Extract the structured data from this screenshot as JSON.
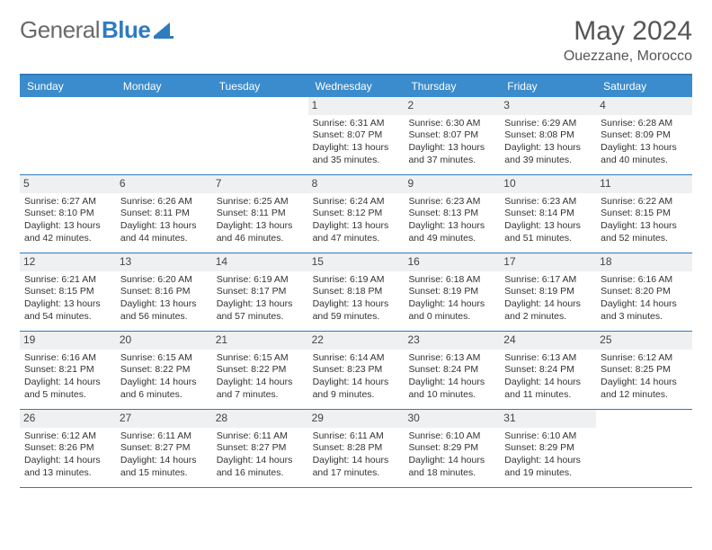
{
  "logo": {
    "text_general": "General",
    "text_blue": "Blue"
  },
  "title": {
    "month": "May 2024",
    "location": "Ouezzane, Morocco"
  },
  "day_names": [
    "Sunday",
    "Monday",
    "Tuesday",
    "Wednesday",
    "Thursday",
    "Friday",
    "Saturday"
  ],
  "colors": {
    "header_bg": "#3b8ccc",
    "border": "#2f7bbf",
    "daynum_bg": "#eef0f1",
    "logo_gray": "#6a6a6a",
    "logo_blue": "#2f7bbf"
  },
  "weeks": [
    [
      {
        "empty": true
      },
      {
        "empty": true
      },
      {
        "empty": true
      },
      {
        "n": "1",
        "sunrise": "Sunrise: 6:31 AM",
        "sunset": "Sunset: 8:07 PM",
        "daylight": "Daylight: 13 hours and 35 minutes."
      },
      {
        "n": "2",
        "sunrise": "Sunrise: 6:30 AM",
        "sunset": "Sunset: 8:07 PM",
        "daylight": "Daylight: 13 hours and 37 minutes."
      },
      {
        "n": "3",
        "sunrise": "Sunrise: 6:29 AM",
        "sunset": "Sunset: 8:08 PM",
        "daylight": "Daylight: 13 hours and 39 minutes."
      },
      {
        "n": "4",
        "sunrise": "Sunrise: 6:28 AM",
        "sunset": "Sunset: 8:09 PM",
        "daylight": "Daylight: 13 hours and 40 minutes."
      }
    ],
    [
      {
        "n": "5",
        "sunrise": "Sunrise: 6:27 AM",
        "sunset": "Sunset: 8:10 PM",
        "daylight": "Daylight: 13 hours and 42 minutes."
      },
      {
        "n": "6",
        "sunrise": "Sunrise: 6:26 AM",
        "sunset": "Sunset: 8:11 PM",
        "daylight": "Daylight: 13 hours and 44 minutes."
      },
      {
        "n": "7",
        "sunrise": "Sunrise: 6:25 AM",
        "sunset": "Sunset: 8:11 PM",
        "daylight": "Daylight: 13 hours and 46 minutes."
      },
      {
        "n": "8",
        "sunrise": "Sunrise: 6:24 AM",
        "sunset": "Sunset: 8:12 PM",
        "daylight": "Daylight: 13 hours and 47 minutes."
      },
      {
        "n": "9",
        "sunrise": "Sunrise: 6:23 AM",
        "sunset": "Sunset: 8:13 PM",
        "daylight": "Daylight: 13 hours and 49 minutes."
      },
      {
        "n": "10",
        "sunrise": "Sunrise: 6:23 AM",
        "sunset": "Sunset: 8:14 PM",
        "daylight": "Daylight: 13 hours and 51 minutes."
      },
      {
        "n": "11",
        "sunrise": "Sunrise: 6:22 AM",
        "sunset": "Sunset: 8:15 PM",
        "daylight": "Daylight: 13 hours and 52 minutes."
      }
    ],
    [
      {
        "n": "12",
        "sunrise": "Sunrise: 6:21 AM",
        "sunset": "Sunset: 8:15 PM",
        "daylight": "Daylight: 13 hours and 54 minutes."
      },
      {
        "n": "13",
        "sunrise": "Sunrise: 6:20 AM",
        "sunset": "Sunset: 8:16 PM",
        "daylight": "Daylight: 13 hours and 56 minutes."
      },
      {
        "n": "14",
        "sunrise": "Sunrise: 6:19 AM",
        "sunset": "Sunset: 8:17 PM",
        "daylight": "Daylight: 13 hours and 57 minutes."
      },
      {
        "n": "15",
        "sunrise": "Sunrise: 6:19 AM",
        "sunset": "Sunset: 8:18 PM",
        "daylight": "Daylight: 13 hours and 59 minutes."
      },
      {
        "n": "16",
        "sunrise": "Sunrise: 6:18 AM",
        "sunset": "Sunset: 8:19 PM",
        "daylight": "Daylight: 14 hours and 0 minutes."
      },
      {
        "n": "17",
        "sunrise": "Sunrise: 6:17 AM",
        "sunset": "Sunset: 8:19 PM",
        "daylight": "Daylight: 14 hours and 2 minutes."
      },
      {
        "n": "18",
        "sunrise": "Sunrise: 6:16 AM",
        "sunset": "Sunset: 8:20 PM",
        "daylight": "Daylight: 14 hours and 3 minutes."
      }
    ],
    [
      {
        "n": "19",
        "sunrise": "Sunrise: 6:16 AM",
        "sunset": "Sunset: 8:21 PM",
        "daylight": "Daylight: 14 hours and 5 minutes."
      },
      {
        "n": "20",
        "sunrise": "Sunrise: 6:15 AM",
        "sunset": "Sunset: 8:22 PM",
        "daylight": "Daylight: 14 hours and 6 minutes."
      },
      {
        "n": "21",
        "sunrise": "Sunrise: 6:15 AM",
        "sunset": "Sunset: 8:22 PM",
        "daylight": "Daylight: 14 hours and 7 minutes."
      },
      {
        "n": "22",
        "sunrise": "Sunrise: 6:14 AM",
        "sunset": "Sunset: 8:23 PM",
        "daylight": "Daylight: 14 hours and 9 minutes."
      },
      {
        "n": "23",
        "sunrise": "Sunrise: 6:13 AM",
        "sunset": "Sunset: 8:24 PM",
        "daylight": "Daylight: 14 hours and 10 minutes."
      },
      {
        "n": "24",
        "sunrise": "Sunrise: 6:13 AM",
        "sunset": "Sunset: 8:24 PM",
        "daylight": "Daylight: 14 hours and 11 minutes."
      },
      {
        "n": "25",
        "sunrise": "Sunrise: 6:12 AM",
        "sunset": "Sunset: 8:25 PM",
        "daylight": "Daylight: 14 hours and 12 minutes."
      }
    ],
    [
      {
        "n": "26",
        "sunrise": "Sunrise: 6:12 AM",
        "sunset": "Sunset: 8:26 PM",
        "daylight": "Daylight: 14 hours and 13 minutes."
      },
      {
        "n": "27",
        "sunrise": "Sunrise: 6:11 AM",
        "sunset": "Sunset: 8:27 PM",
        "daylight": "Daylight: 14 hours and 15 minutes."
      },
      {
        "n": "28",
        "sunrise": "Sunrise: 6:11 AM",
        "sunset": "Sunset: 8:27 PM",
        "daylight": "Daylight: 14 hours and 16 minutes."
      },
      {
        "n": "29",
        "sunrise": "Sunrise: 6:11 AM",
        "sunset": "Sunset: 8:28 PM",
        "daylight": "Daylight: 14 hours and 17 minutes."
      },
      {
        "n": "30",
        "sunrise": "Sunrise: 6:10 AM",
        "sunset": "Sunset: 8:29 PM",
        "daylight": "Daylight: 14 hours and 18 minutes."
      },
      {
        "n": "31",
        "sunrise": "Sunrise: 6:10 AM",
        "sunset": "Sunset: 8:29 PM",
        "daylight": "Daylight: 14 hours and 19 minutes."
      },
      {
        "empty": true
      }
    ]
  ]
}
